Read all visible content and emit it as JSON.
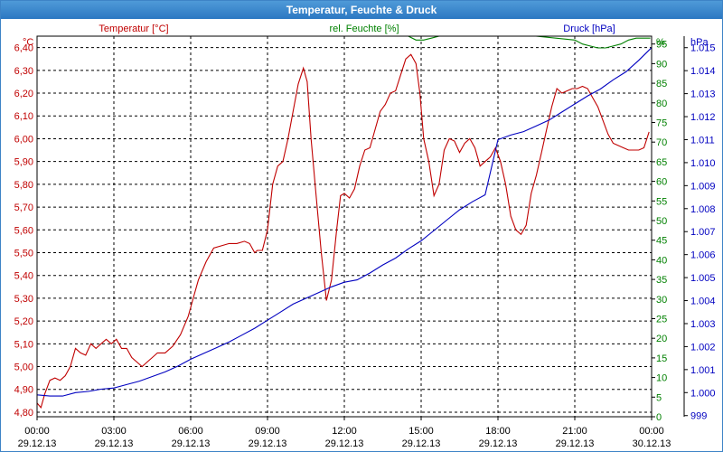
{
  "window": {
    "title": "Temperatur, Feuchte & Druck"
  },
  "chart_data": {
    "type": "line",
    "title": "Temperatur, Feuchte & Druck",
    "grid": true,
    "legend": [
      {
        "name": "Temperatur [°C]",
        "color": "#c00000"
      },
      {
        "name": "rel. Feuchte [%]",
        "color": "#008000"
      },
      {
        "name": "Druck [hPa]",
        "color": "#0000c0"
      }
    ],
    "colors": {
      "temperature": "#c00000",
      "humidity": "#008000",
      "pressure": "#0000c0",
      "grid": "#000000"
    },
    "x_ticks": [
      {
        "time": "00:00",
        "date": "29.12.13",
        "h": 0
      },
      {
        "time": "03:00",
        "date": "29.12.13",
        "h": 3
      },
      {
        "time": "06:00",
        "date": "29.12.13",
        "h": 6
      },
      {
        "time": "09:00",
        "date": "29.12.13",
        "h": 9
      },
      {
        "time": "12:00",
        "date": "29.12.13",
        "h": 12
      },
      {
        "time": "15:00",
        "date": "29.12.13",
        "h": 15
      },
      {
        "time": "18:00",
        "date": "29.12.13",
        "h": 18
      },
      {
        "time": "21:00",
        "date": "29.12.13",
        "h": 21
      },
      {
        "time": "00:00",
        "date": "30.12.13",
        "h": 24
      }
    ],
    "xlim": [
      0,
      24
    ],
    "axes": {
      "temperature": {
        "unit": "°C",
        "ylim": [
          4.78,
          6.45
        ],
        "ticks": [
          "4,80",
          "4,90",
          "5,00",
          "5,10",
          "5,20",
          "5,30",
          "5,40",
          "5,50",
          "5,60",
          "5,70",
          "5,80",
          "5,90",
          "6,00",
          "6,10",
          "6,20",
          "6,30",
          "6,40"
        ],
        "tick_values": [
          4.8,
          4.9,
          5.0,
          5.1,
          5.2,
          5.3,
          5.4,
          5.5,
          5.6,
          5.7,
          5.8,
          5.9,
          6.0,
          6.1,
          6.2,
          6.3,
          6.4
        ]
      },
      "humidity": {
        "unit": "%",
        "ylim": [
          0,
          97
        ],
        "ticks": [
          "0",
          "5",
          "10",
          "15",
          "20",
          "25",
          "30",
          "35",
          "40",
          "45",
          "50",
          "55",
          "60",
          "65",
          "70",
          "75",
          "80",
          "85",
          "90",
          "95"
        ],
        "tick_values": [
          0,
          5,
          10,
          15,
          20,
          25,
          30,
          35,
          40,
          45,
          50,
          55,
          60,
          65,
          70,
          75,
          80,
          85,
          90,
          95
        ]
      },
      "pressure": {
        "unit": "hPa",
        "ylim": [
          998.95,
          1015.5
        ],
        "ticks": [
          "999",
          "1.000",
          "1.001",
          "1.002",
          "1.003",
          "1.004",
          "1.005",
          "1.006",
          "1.007",
          "1.008",
          "1.009",
          "1.010",
          "1.011",
          "1.012",
          "1.013",
          "1.014",
          "1.015"
        ],
        "tick_values": [
          999,
          1000,
          1001,
          1002,
          1003,
          1004,
          1005,
          1006,
          1007,
          1008,
          1009,
          1010,
          1011,
          1012,
          1013,
          1014,
          1015
        ]
      }
    },
    "series": [
      {
        "name": "Temperatur [°C]",
        "axis": "temperature",
        "x": [
          0,
          0.15,
          0.3,
          0.5,
          0.7,
          0.9,
          1.1,
          1.3,
          1.5,
          1.7,
          1.9,
          2.1,
          2.3,
          2.5,
          2.7,
          2.9,
          3.1,
          3.3,
          3.5,
          3.7,
          3.9,
          4.1,
          4.3,
          4.5,
          4.7,
          5.0,
          5.3,
          5.6,
          5.9,
          6.1,
          6.3,
          6.6,
          6.9,
          7.2,
          7.5,
          7.8,
          8.1,
          8.3,
          8.5,
          8.6,
          8.8,
          9.0,
          9.2,
          9.4,
          9.6,
          9.8,
          10.0,
          10.2,
          10.4,
          10.55,
          10.7,
          10.9,
          11.1,
          11.3,
          11.5,
          11.7,
          11.85,
          12.0,
          12.2,
          12.4,
          12.6,
          12.8,
          13.0,
          13.2,
          13.4,
          13.6,
          13.8,
          14.0,
          14.2,
          14.4,
          14.6,
          14.8,
          14.95,
          15.1,
          15.3,
          15.5,
          15.7,
          15.9,
          16.1,
          16.3,
          16.5,
          16.7,
          16.9,
          17.1,
          17.3,
          17.5,
          17.7,
          17.9,
          18.1,
          18.3,
          18.5,
          18.7,
          18.9,
          19.1,
          19.3,
          19.5,
          19.7,
          19.9,
          20.1,
          20.3,
          20.5,
          20.7,
          20.9,
          21.1,
          21.3,
          21.5,
          21.7,
          21.9,
          22.1,
          22.3,
          22.5,
          22.7,
          22.9,
          23.1,
          23.3,
          23.5,
          23.7,
          23.9
        ],
        "y": [
          4.84,
          4.82,
          4.88,
          4.94,
          4.95,
          4.94,
          4.96,
          5.0,
          5.08,
          5.06,
          5.05,
          5.1,
          5.08,
          5.1,
          5.12,
          5.1,
          5.12,
          5.08,
          5.08,
          5.04,
          5.02,
          5.0,
          5.02,
          5.04,
          5.06,
          5.06,
          5.09,
          5.14,
          5.22,
          5.3,
          5.38,
          5.46,
          5.52,
          5.53,
          5.54,
          5.54,
          5.55,
          5.54,
          5.5,
          5.51,
          5.51,
          5.6,
          5.8,
          5.88,
          5.9,
          6.0,
          6.12,
          6.24,
          6.31,
          6.25,
          6.0,
          5.75,
          5.5,
          5.29,
          5.38,
          5.6,
          5.75,
          5.76,
          5.74,
          5.78,
          5.88,
          5.95,
          5.96,
          6.04,
          6.12,
          6.15,
          6.2,
          6.21,
          6.28,
          6.35,
          6.37,
          6.33,
          6.2,
          6.0,
          5.9,
          5.75,
          5.8,
          5.95,
          6.0,
          5.99,
          5.94,
          5.98,
          6.0,
          5.96,
          5.88,
          5.9,
          5.92,
          5.96,
          5.9,
          5.8,
          5.66,
          5.6,
          5.58,
          5.62,
          5.76,
          5.84,
          5.94,
          6.04,
          6.14,
          6.22,
          6.2,
          6.21,
          6.22,
          6.22,
          6.23,
          6.22,
          6.18,
          6.14,
          6.08,
          6.02,
          5.98,
          5.97,
          5.96,
          5.95,
          5.95,
          5.95,
          5.96,
          6.03
        ]
      },
      {
        "name": "rel. Feuchte [%]",
        "axis": "humidity",
        "x": [
          13.6,
          13.9,
          14.2,
          14.5,
          14.8,
          15.1,
          15.4,
          15.7,
          16.0,
          16.3,
          16.6,
          16.9,
          17.2,
          17.5,
          17.8,
          18.0,
          21.0,
          21.3,
          21.6,
          21.9,
          22.2,
          22.5,
          22.8,
          23.1,
          23.4,
          23.7,
          23.95
        ],
        "y": [
          98,
          98,
          97.5,
          97,
          96,
          96,
          96.5,
          97,
          97.5,
          98,
          98,
          98.5,
          98,
          97.5,
          98,
          98,
          96,
          95,
          94.5,
          94,
          94,
          94.5,
          95,
          96,
          96.5,
          96.5,
          96.5
        ]
      },
      {
        "name": "Druck [hPa]",
        "axis": "pressure",
        "x": [
          0,
          0.5,
          1.0,
          1.5,
          2.0,
          2.5,
          3.0,
          3.5,
          4.0,
          4.5,
          5.0,
          5.5,
          6.0,
          6.5,
          7.0,
          7.5,
          8.0,
          8.5,
          9.0,
          9.5,
          10.0,
          10.5,
          11.0,
          11.5,
          12.0,
          12.5,
          13.0,
          13.5,
          14.0,
          14.5,
          15.0,
          15.5,
          16.0,
          16.5,
          17.0,
          17.5,
          18.0,
          18.5,
          19.0,
          19.5,
          20.0,
          20.5,
          21.0,
          21.5,
          22.0,
          22.5,
          23.0,
          23.5,
          24.0
        ],
        "y": [
          999.9,
          999.85,
          999.85,
          1000.0,
          1000.05,
          1000.15,
          1000.2,
          1000.35,
          1000.5,
          1000.7,
          1000.9,
          1001.15,
          1001.45,
          1001.7,
          1001.95,
          1002.2,
          1002.5,
          1002.8,
          1003.15,
          1003.5,
          1003.85,
          1004.1,
          1004.35,
          1004.6,
          1004.8,
          1004.9,
          1005.2,
          1005.55,
          1005.85,
          1006.25,
          1006.6,
          1007.05,
          1007.5,
          1007.95,
          1008.3,
          1008.6,
          1011.0,
          1011.2,
          1011.35,
          1011.6,
          1011.85,
          1012.2,
          1012.55,
          1012.9,
          1013.2,
          1013.6,
          1013.95,
          1014.45,
          1015.0
        ]
      }
    ]
  }
}
